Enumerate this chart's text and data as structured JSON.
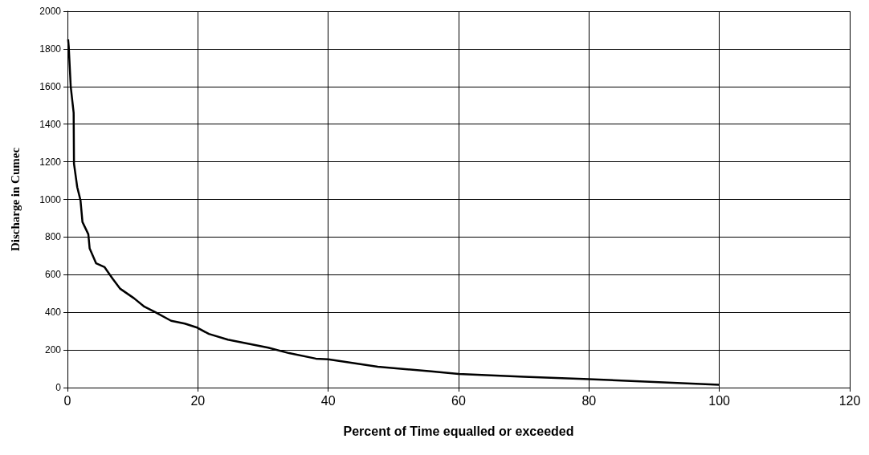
{
  "chart_data": {
    "type": "line",
    "xlabel": "Percent of Time equalled or exceeded",
    "ylabel": "Discharge in Cumec",
    "series": [
      {
        "color": "#000000",
        "x": [
          0.1,
          0.2,
          0.5,
          0.95,
          1.0,
          1.5,
          2.0,
          2.3,
          3.2,
          3.4,
          4.4,
          5.7,
          6.9,
          8.1,
          10.2,
          11.8,
          13.5,
          15.9,
          18,
          19.8,
          21.7,
          24.6,
          30.8,
          34,
          38.1,
          40,
          47.6,
          55.8,
          60,
          70,
          80,
          90,
          100
        ],
        "values": [
          1850,
          1810,
          1600,
          1460,
          1190,
          1065,
          995,
          880,
          815,
          740,
          660,
          640,
          580,
          525,
          475,
          430,
          400,
          355,
          340,
          320,
          285,
          255,
          212,
          183,
          154,
          150,
          111,
          86,
          72,
          58,
          45,
          30,
          15
        ]
      }
    ],
    "xlim": [
      0,
      120
    ],
    "xticks": [
      0,
      20,
      40,
      60,
      80,
      100,
      120
    ],
    "ylim": [
      0,
      2000
    ],
    "yticks": [
      0,
      200,
      400,
      600,
      800,
      1000,
      1200,
      1400,
      1600,
      1800,
      2000
    ],
    "grid": true,
    "marker": "none",
    "line_style": "solid"
  }
}
